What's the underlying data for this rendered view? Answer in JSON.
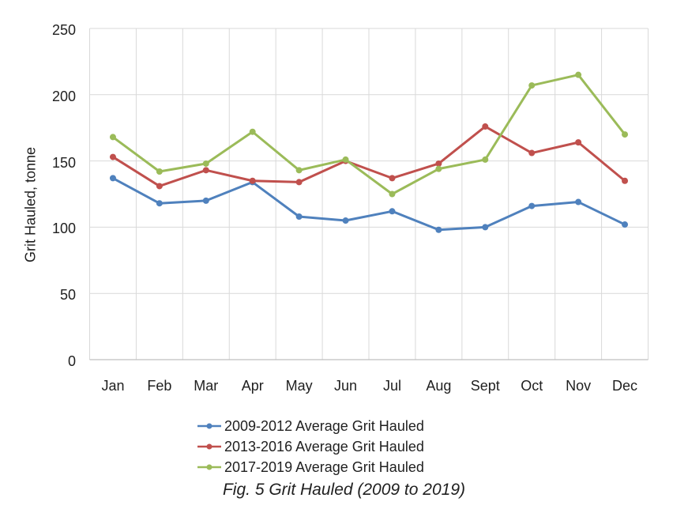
{
  "chart_data": {
    "type": "line",
    "title": "",
    "xlabel": "",
    "ylabel": "Grit Hauled, tonne",
    "ylim": [
      0,
      250
    ],
    "yticks": [
      0,
      50,
      100,
      150,
      200,
      250
    ],
    "grid": true,
    "legend_position": "bottom",
    "caption": "Fig. 5 Grit Hauled (2009 to 2019)",
    "categories": [
      "Jan",
      "Feb",
      "Mar",
      "Apr",
      "May",
      "Jun",
      "Jul",
      "Aug",
      "Sept",
      "Oct",
      "Nov",
      "Dec"
    ],
    "series": [
      {
        "name": "2009-2012 Average Grit Hauled",
        "color": "#4F81BD",
        "values": [
          137,
          118,
          120,
          134,
          108,
          105,
          112,
          98,
          100,
          116,
          119,
          102
        ]
      },
      {
        "name": "2013-2016 Average Grit Hauled",
        "color": "#C0504D",
        "values": [
          153,
          131,
          143,
          135,
          134,
          150,
          137,
          148,
          176,
          156,
          164,
          135
        ]
      },
      {
        "name": "2017-2019 Average Grit Hauled",
        "color": "#9BBB59",
        "values": [
          168,
          142,
          148,
          172,
          143,
          151,
          125,
          144,
          151,
          207,
          215,
          170
        ]
      }
    ]
  },
  "colors": {
    "gridline": "#D9D9D9",
    "axis_line": "#BFBFBF",
    "text": "#1f1f1f"
  }
}
